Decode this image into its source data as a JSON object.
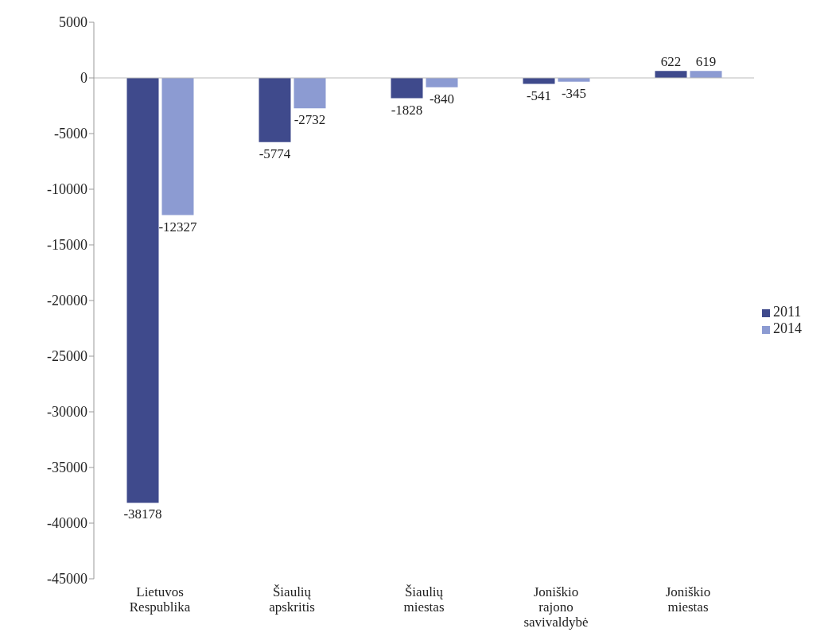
{
  "chart_data": {
    "type": "bar",
    "categories": [
      "Lietuvos Respublika",
      "Šiaulių apskritis",
      "Šiaulių miestas",
      "Joniškio rajono savivaldybė",
      "Joniškio miestas"
    ],
    "series": [
      {
        "name": "2011",
        "color": "#3f4a8c",
        "values": [
          -38178,
          -5774,
          -1828,
          -541,
          622
        ]
      },
      {
        "name": "2014",
        "color": "#8c9bd2",
        "values": [
          -12327,
          -2732,
          -840,
          -345,
          619
        ]
      }
    ],
    "ylim": [
      -45000,
      5000
    ],
    "yticks": [
      5000,
      0,
      -5000,
      -10000,
      -15000,
      -20000,
      -25000,
      -30000,
      -35000,
      -40000,
      -45000
    ],
    "legend": "right",
    "data_labels": true
  }
}
